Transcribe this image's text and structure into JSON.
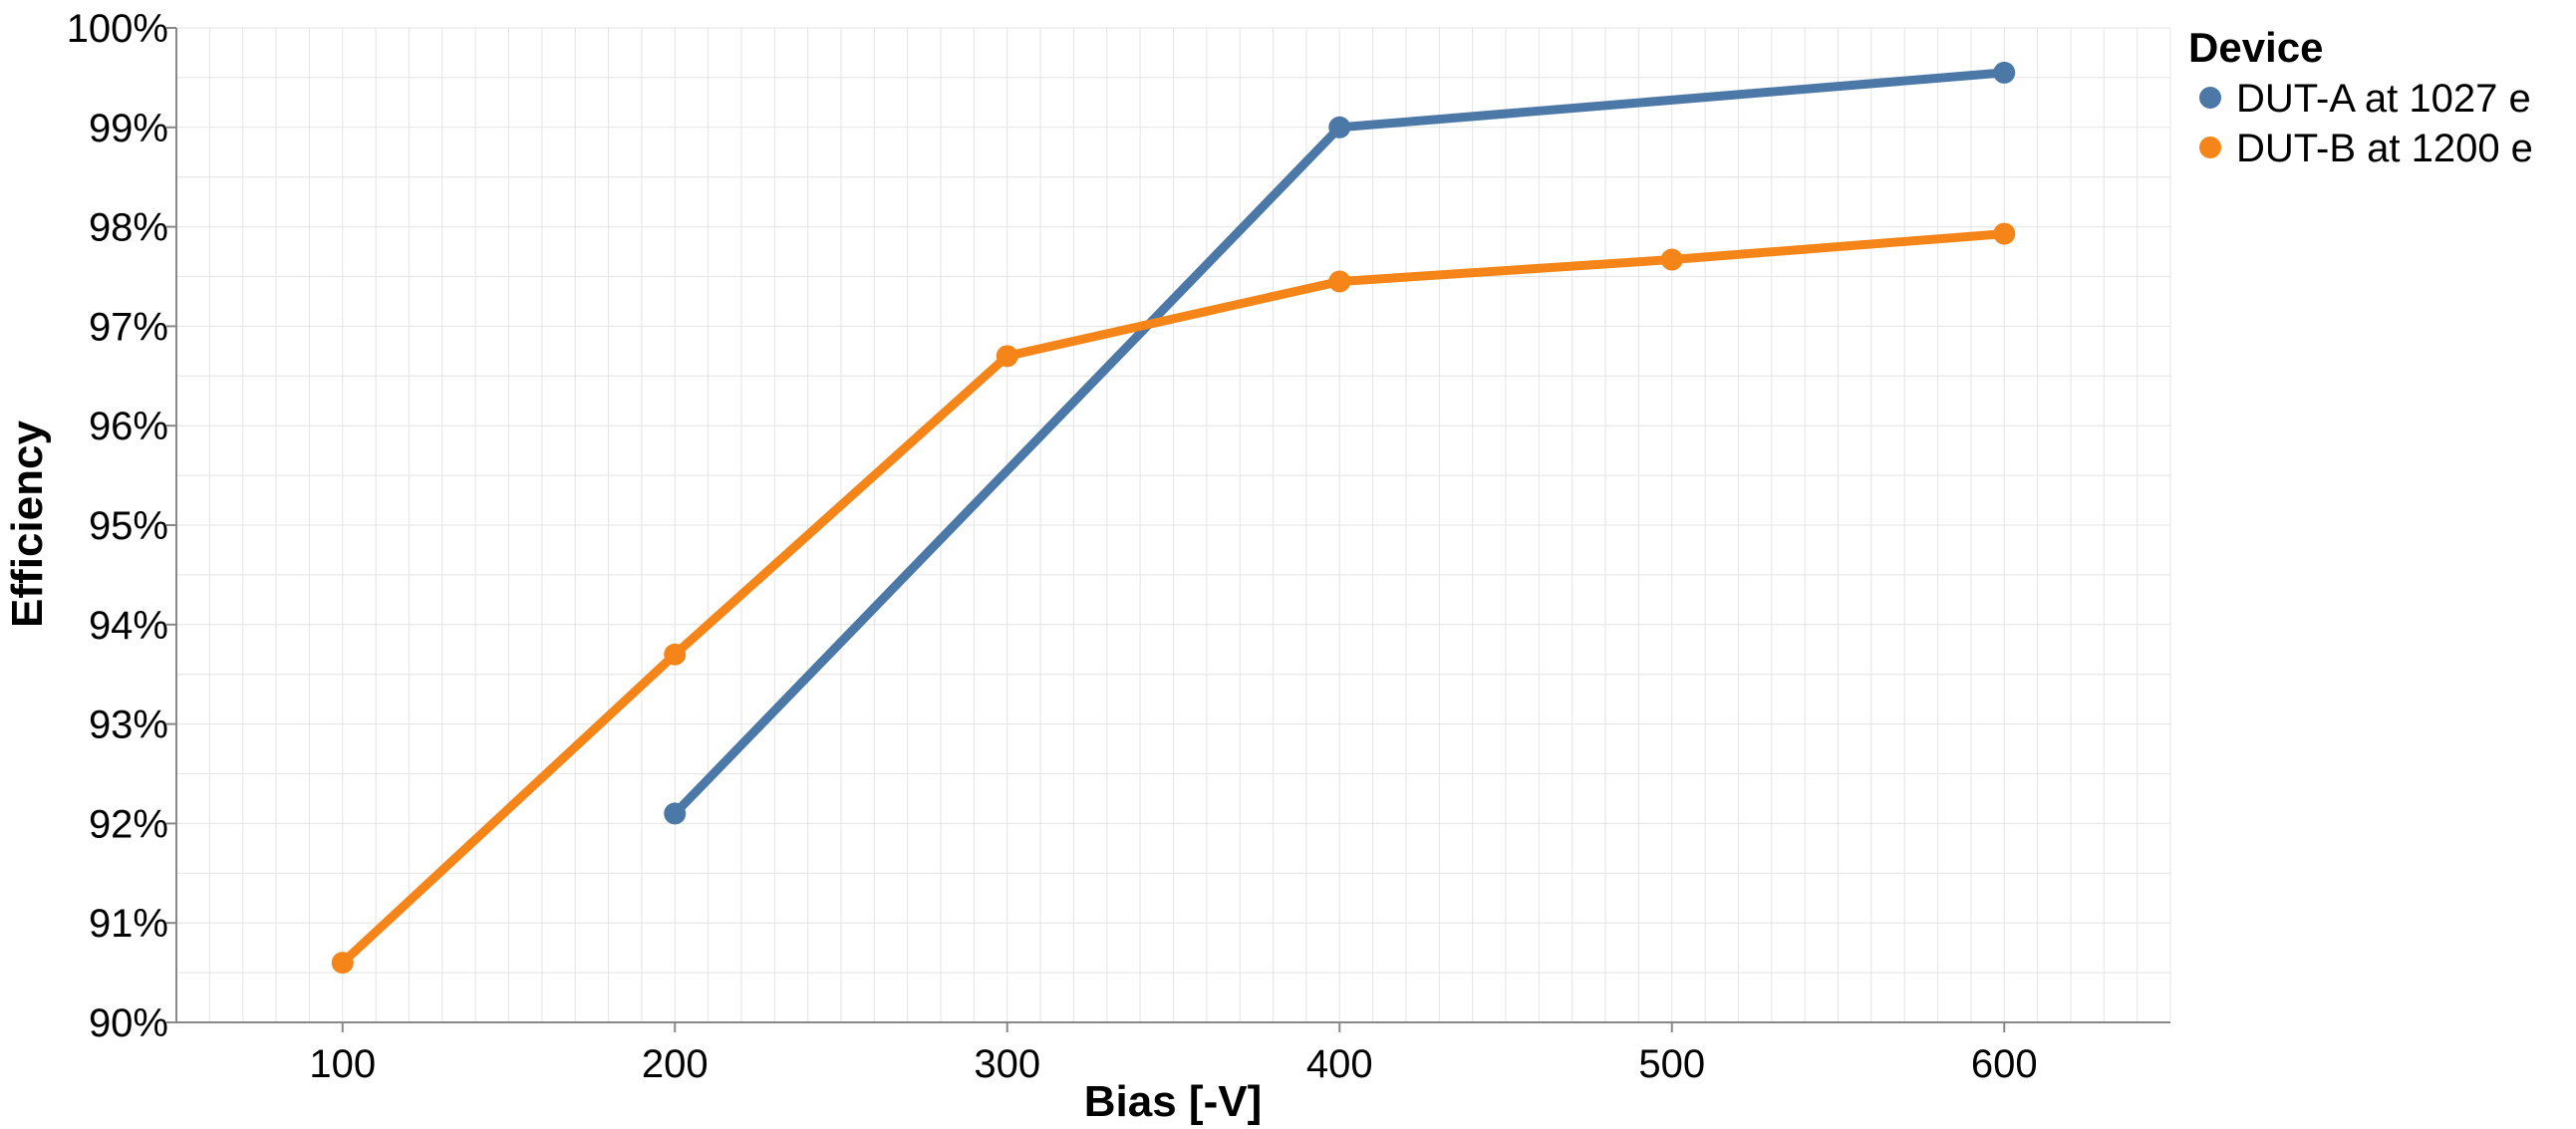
{
  "chart_data": {
    "type": "line",
    "xlabel": "Bias [-V]",
    "ylabel": "Efficiency",
    "xlim": [
      50,
      650
    ],
    "ylim": [
      90,
      100
    ],
    "x_ticks": [
      100,
      200,
      300,
      400,
      500,
      600
    ],
    "x_tick_labels": [
      "100",
      "200",
      "300",
      "400",
      "500",
      "600"
    ],
    "y_ticks": [
      90,
      91,
      92,
      93,
      94,
      95,
      96,
      97,
      98,
      99,
      100
    ],
    "y_tick_labels": [
      "90%",
      "91%",
      "92%",
      "93%",
      "94%",
      "95%",
      "96%",
      "97%",
      "98%",
      "99%",
      "100%"
    ],
    "grid": true,
    "legend": {
      "title": "Device",
      "placement": "right"
    },
    "series": [
      {
        "name": "DUT-A at 1027 e",
        "color": "#4c78a8",
        "x": [
          200,
          400,
          600
        ],
        "y": [
          92.1,
          99.0,
          99.55
        ]
      },
      {
        "name": "DUT-B at 1200 e",
        "color": "#f58518",
        "x": [
          100,
          200,
          300,
          400,
          500,
          600
        ],
        "y": [
          90.6,
          93.7,
          96.7,
          97.45,
          97.67,
          97.93
        ]
      }
    ]
  }
}
